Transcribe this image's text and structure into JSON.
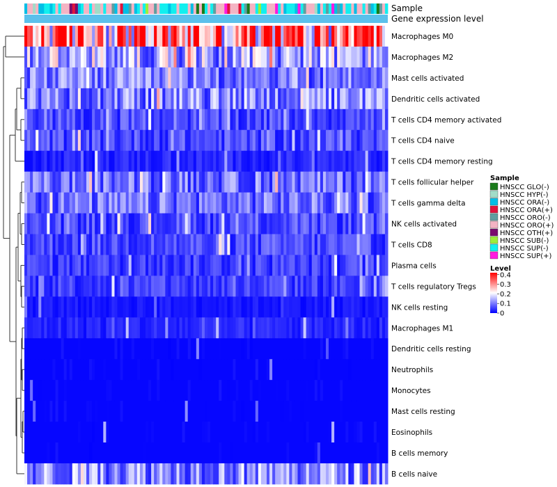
{
  "chart_data": {
    "type": "heatmap",
    "annotation_tracks": [
      "Sample",
      "Gene expression level"
    ],
    "rows": [
      "Macrophages M0",
      "Macrophages M2",
      "Mast cells activated",
      "Dendritic cells activated",
      "T cells CD4 memory activated",
      "T cells CD4 naive",
      "T cells CD4 memory resting",
      "T cells follicular helper",
      "T cells gamma delta",
      "NK cells activated",
      "T cells CD8",
      "Plasma cells",
      "T cells regulatory  Tregs",
      "NK cells resting",
      "Macrophages M1",
      "Dendritic cells resting",
      "Neutrophils",
      "Monocytes",
      "Mast cells resting",
      "Eosinophils",
      "B cells memory",
      "B cells naive"
    ],
    "row_mean_levels": [
      0.32,
      0.14,
      0.1,
      0.11,
      0.06,
      0.06,
      0.03,
      0.09,
      0.09,
      0.06,
      0.06,
      0.05,
      0.05,
      0.02,
      0.03,
      0.01,
      0.01,
      0.01,
      0.01,
      0.01,
      0.01,
      0.12
    ],
    "n_samples": 129,
    "legend_sample": {
      "title": "Sample",
      "items": [
        {
          "label": "HNSCC GLO(-)",
          "color": "#1a7a1a"
        },
        {
          "label": "HNSCC HYP(-)",
          "color": "#a2dcc8"
        },
        {
          "label": "HNSCC ORA(-)",
          "color": "#00bfe6"
        },
        {
          "label": "HNSCC ORA(+)",
          "color": "#e0143c"
        },
        {
          "label": "HNSCC ORO(-)",
          "color": "#5f9ea0"
        },
        {
          "label": "HNSCC ORO(+)",
          "color": "#f4b4c4"
        },
        {
          "label": "HNSCC OTH(+)",
          "color": "#7a0a6e"
        },
        {
          "label": "HNSCC SUB(-)",
          "color": "#9dee3a"
        },
        {
          "label": "HNSCC SUP(-)",
          "color": "#12efef"
        },
        {
          "label": "HNSCC SUP(+)",
          "color": "#ff1ae0"
        }
      ]
    },
    "legend_level": {
      "title": "Level",
      "ticks": [
        "0.4",
        "0.3",
        "0.2",
        "0.1",
        "0"
      ],
      "tick_values": [
        0.4,
        0.3,
        0.2,
        0.1,
        0
      ],
      "range": [
        0,
        0.42
      ],
      "colors": [
        "#0000ff",
        "#ffffff",
        "#ff0000"
      ]
    },
    "expression_track_color": "#5bc0eb"
  }
}
